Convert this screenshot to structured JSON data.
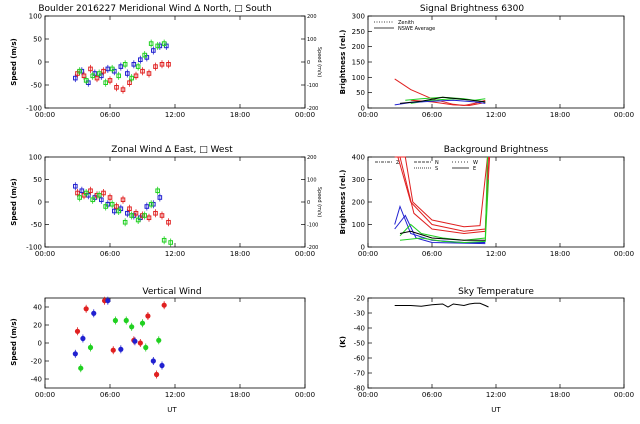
{
  "panels": {
    "meridional": {
      "title": "Boulder   2016227     Meridional Wind   Δ North, □ South",
      "ylabel": "Speed (m/s)",
      "right_label": "Speed (m/s)"
    },
    "signal": {
      "title": "Signal Brightness          6300",
      "ylabel": "Brightness (rel.)",
      "legend": [
        "Zenith",
        "NSWE Average"
      ]
    },
    "zonal": {
      "title": "Zonal Wind        Δ East, □ West",
      "ylabel": "Speed (m/s)",
      "right_label": "Speed (m/s)"
    },
    "background": {
      "title": "Background Brightness",
      "ylabel": "Brightness (rel.)",
      "legend": [
        "Z",
        "N",
        "S",
        "W",
        "E"
      ]
    },
    "vertical": {
      "title": "Vertical Wind",
      "ylabel": "Speed (m/s)",
      "xlabel": "UT"
    },
    "sky": {
      "title": "Sky Temperature",
      "ylabel": "(K)",
      "xlabel": "UT"
    }
  },
  "chart_data": [
    {
      "id": "meridional",
      "type": "scatter",
      "title": "Boulder   2016227     Meridional Wind   Δ North, □ South",
      "ylabel": "Speed (m/s)",
      "xlim": [
        0,
        24
      ],
      "ylim": [
        -100,
        100
      ],
      "xticks": [
        "00:00",
        "06:00",
        "12:00",
        "18:00",
        "00:00"
      ],
      "yticks": [
        -100,
        -50,
        0,
        50,
        100
      ],
      "right_ylim": [
        -200,
        200
      ],
      "right_yticks": [
        -200,
        -100,
        0,
        100,
        200
      ],
      "series": [
        {
          "color": "#2020d0",
          "points": [
            [
              2.8,
              -35
            ],
            [
              3.4,
              -20
            ],
            [
              4.0,
              -45
            ],
            [
              4.6,
              -25
            ],
            [
              5.2,
              -30
            ],
            [
              5.8,
              -15
            ],
            [
              6.4,
              -20
            ],
            [
              7.0,
              -10
            ],
            [
              7.6,
              -25
            ],
            [
              8.2,
              -5
            ],
            [
              8.8,
              5
            ],
            [
              9.4,
              10
            ],
            [
              10.0,
              25
            ],
            [
              10.6,
              35
            ],
            [
              11.2,
              35
            ]
          ]
        },
        {
          "color": "#e02020",
          "points": [
            [
              3.0,
              -25
            ],
            [
              3.6,
              -30
            ],
            [
              4.2,
              -15
            ],
            [
              4.8,
              -35
            ],
            [
              5.4,
              -20
            ],
            [
              6.0,
              -40
            ],
            [
              6.6,
              -55
            ],
            [
              7.2,
              -60
            ],
            [
              7.8,
              -45
            ],
            [
              8.4,
              -30
            ],
            [
              9.0,
              -20
            ],
            [
              9.6,
              -25
            ],
            [
              10.2,
              -10
            ],
            [
              10.8,
              -5
            ],
            [
              11.4,
              -5
            ]
          ]
        },
        {
          "color": "#20d020",
          "points": [
            [
              3.2,
              -20
            ],
            [
              3.8,
              -40
            ],
            [
              4.4,
              -30
            ],
            [
              5.0,
              -25
            ],
            [
              5.6,
              -45
            ],
            [
              6.2,
              -15
            ],
            [
              6.8,
              -30
            ],
            [
              7.4,
              -5
            ],
            [
              8.0,
              -35
            ],
            [
              8.6,
              -10
            ],
            [
              9.2,
              15
            ],
            [
              9.8,
              40
            ],
            [
              10.4,
              35
            ],
            [
              11.0,
              40
            ]
          ]
        }
      ]
    },
    {
      "id": "signal",
      "type": "line",
      "title": "Signal Brightness          6300",
      "ylabel": "Brightness (rel.)",
      "xlim": [
        0,
        24
      ],
      "ylim": [
        0,
        300
      ],
      "xticks": [
        "00:00",
        "06:00",
        "12:00",
        "18:00",
        "00:00"
      ],
      "yticks": [
        0,
        50,
        100,
        150,
        200,
        250,
        300
      ],
      "legend": [
        "Zenith",
        "NSWE Average"
      ],
      "series": [
        {
          "color": "#e02020",
          "dash": "",
          "points": [
            [
              2.5,
              95
            ],
            [
              4,
              60
            ],
            [
              6,
              30
            ],
            [
              8,
              12
            ],
            [
              9,
              8
            ],
            [
              10,
              15
            ],
            [
              11,
              25
            ]
          ]
        },
        {
          "color": "#e02020",
          "dash": "",
          "points": [
            [
              4,
              25
            ],
            [
              6,
              20
            ],
            [
              8,
              10
            ],
            [
              9.5,
              8
            ],
            [
              11,
              18
            ]
          ]
        },
        {
          "color": "#20d020",
          "dash": "",
          "points": [
            [
              3.5,
              25
            ],
            [
              5,
              30
            ],
            [
              7,
              35
            ],
            [
              9,
              30
            ],
            [
              11,
              20
            ]
          ]
        },
        {
          "color": "#20d020",
          "dash": "",
          "points": [
            [
              4,
              15
            ],
            [
              6,
              25
            ],
            [
              8,
              30
            ],
            [
              10,
              25
            ],
            [
              11,
              30
            ]
          ]
        },
        {
          "color": "#2020d0",
          "dash": "",
          "points": [
            [
              2.5,
              10
            ],
            [
              4,
              18
            ],
            [
              6,
              22
            ],
            [
              8,
              25
            ],
            [
              10,
              20
            ],
            [
              11,
              15
            ]
          ]
        },
        {
          "color": "#000000",
          "dash": "",
          "points": [
            [
              3,
              15
            ],
            [
              5,
              22
            ],
            [
              7,
              35
            ],
            [
              9,
              28
            ],
            [
              11,
              20
            ]
          ]
        }
      ]
    },
    {
      "id": "zonal",
      "type": "scatter",
      "title": "Zonal Wind        Δ East, □ West",
      "ylabel": "Speed (m/s)",
      "xlim": [
        0,
        24
      ],
      "ylim": [
        -100,
        100
      ],
      "xticks": [
        "00:00",
        "06:00",
        "12:00",
        "18:00",
        "00:00"
      ],
      "yticks": [
        -100,
        -50,
        0,
        50,
        100
      ],
      "right_ylim": [
        -200,
        200
      ],
      "right_yticks": [
        -200,
        -100,
        0,
        100,
        200
      ],
      "series": [
        {
          "color": "#2020d0",
          "points": [
            [
              2.8,
              35
            ],
            [
              3.4,
              25
            ],
            [
              4.0,
              15
            ],
            [
              4.6,
              10
            ],
            [
              5.2,
              5
            ],
            [
              5.8,
              -5
            ],
            [
              6.4,
              -20
            ],
            [
              7.0,
              -15
            ],
            [
              7.6,
              -25
            ],
            [
              8.2,
              -30
            ],
            [
              8.8,
              -35
            ],
            [
              9.4,
              -10
            ],
            [
              10.0,
              -5
            ],
            [
              10.6,
              10
            ]
          ]
        },
        {
          "color": "#e02020",
          "points": [
            [
              3.0,
              20
            ],
            [
              3.6,
              15
            ],
            [
              4.2,
              25
            ],
            [
              4.8,
              15
            ],
            [
              5.4,
              20
            ],
            [
              6.0,
              10
            ],
            [
              6.6,
              -10
            ],
            [
              7.2,
              5
            ],
            [
              7.8,
              -15
            ],
            [
              8.4,
              -25
            ],
            [
              9.0,
              -30
            ],
            [
              9.6,
              -35
            ],
            [
              10.2,
              -25
            ],
            [
              10.8,
              -30
            ],
            [
              11.4,
              -45
            ]
          ]
        },
        {
          "color": "#20d020",
          "points": [
            [
              3.2,
              10
            ],
            [
              3.8,
              20
            ],
            [
              4.4,
              5
            ],
            [
              5.0,
              15
            ],
            [
              5.6,
              -10
            ],
            [
              6.2,
              -5
            ],
            [
              6.8,
              -20
            ],
            [
              7.4,
              -45
            ],
            [
              8.0,
              -30
            ],
            [
              8.6,
              -40
            ],
            [
              9.2,
              -30
            ],
            [
              9.8,
              -5
            ],
            [
              10.4,
              25
            ],
            [
              11.0,
              -85
            ],
            [
              11.6,
              -90
            ]
          ]
        }
      ]
    },
    {
      "id": "background",
      "type": "line",
      "title": "Background Brightness",
      "ylabel": "Brightness (rel.)",
      "xlim": [
        0,
        24
      ],
      "ylim": [
        0,
        400
      ],
      "xticks": [
        "00:00",
        "06:00",
        "12:00",
        "18:00",
        "00:00"
      ],
      "yticks": [
        0,
        100,
        200,
        300,
        400
      ],
      "legend": [
        "Z",
        "N",
        "S",
        "W",
        "E"
      ],
      "series": [
        {
          "color": "#e02020",
          "points": [
            [
              2.5,
              400
            ],
            [
              3.5,
              400
            ],
            [
              4.2,
              200
            ],
            [
              6,
              120
            ],
            [
              9,
              90
            ],
            [
              10.5,
              95
            ],
            [
              11.2,
              400
            ]
          ]
        },
        {
          "color": "#e02020",
          "points": [
            [
              2.8,
              400
            ],
            [
              4,
              200
            ],
            [
              6,
              100
            ],
            [
              9,
              70
            ],
            [
              11,
              80
            ],
            [
              11.3,
              400
            ]
          ]
        },
        {
          "color": "#e02020",
          "points": [
            [
              3,
              400
            ],
            [
              4.3,
              150
            ],
            [
              6,
              80
            ],
            [
              9,
              60
            ],
            [
              11,
              70
            ],
            [
              11.4,
              400
            ]
          ]
        },
        {
          "color": "#2020d0",
          "points": [
            [
              2.5,
              100
            ],
            [
              3,
              180
            ],
            [
              4,
              60
            ],
            [
              6,
              30
            ],
            [
              9,
              20
            ],
            [
              11,
              20
            ]
          ]
        },
        {
          "color": "#2020d0",
          "points": [
            [
              2.5,
              80
            ],
            [
              3.5,
              140
            ],
            [
              4.5,
              40
            ],
            [
              6,
              20
            ],
            [
              11,
              15
            ]
          ]
        },
        {
          "color": "#20d020",
          "points": [
            [
              3,
              50
            ],
            [
              4,
              100
            ],
            [
              5,
              60
            ],
            [
              7,
              40
            ],
            [
              9,
              30
            ],
            [
              11,
              40
            ],
            [
              11.2,
              400
            ]
          ]
        },
        {
          "color": "#20d020",
          "points": [
            [
              3,
              30
            ],
            [
              5,
              40
            ],
            [
              7,
              25
            ],
            [
              9,
              20
            ],
            [
              11,
              25
            ],
            [
              11.3,
              300
            ]
          ]
        },
        {
          "color": "#000000",
          "points": [
            [
              3,
              60
            ],
            [
              4,
              70
            ],
            [
              6,
              40
            ],
            [
              9,
              30
            ],
            [
              11,
              30
            ]
          ]
        }
      ]
    },
    {
      "id": "vertical",
      "type": "scatter",
      "title": "Vertical Wind",
      "ylabel": "Speed (m/s)",
      "xlabel": "UT",
      "xlim": [
        0,
        24
      ],
      "ylim": [
        -50,
        50
      ],
      "xticks": [
        "00:00",
        "06:00",
        "12:00",
        "18:00",
        "00:00"
      ],
      "yticks": [
        -40,
        -20,
        0,
        20,
        40
      ],
      "series": [
        {
          "color": "#e02020",
          "points": [
            [
              3,
              13
            ],
            [
              3.8,
              38
            ],
            [
              5.5,
              47
            ],
            [
              6.3,
              -8
            ],
            [
              8.2,
              3
            ],
            [
              8.8,
              0
            ],
            [
              9.5,
              30
            ],
            [
              10.3,
              -35
            ],
            [
              11,
              42
            ]
          ]
        },
        {
          "color": "#2020d0",
          "points": [
            [
              2.8,
              -12
            ],
            [
              3.5,
              5
            ],
            [
              4.5,
              33
            ],
            [
              5.8,
              47
            ],
            [
              7,
              -7
            ],
            [
              8.3,
              2
            ],
            [
              10,
              -20
            ],
            [
              10.8,
              -25
            ]
          ]
        },
        {
          "color": "#20d020",
          "points": [
            [
              3.3,
              -28
            ],
            [
              4.2,
              -5
            ],
            [
              6.5,
              25
            ],
            [
              7.5,
              25
            ],
            [
              8.0,
              18
            ],
            [
              9.0,
              22
            ],
            [
              9.3,
              -5
            ],
            [
              10.5,
              3
            ]
          ]
        }
      ]
    },
    {
      "id": "sky",
      "type": "line",
      "title": "Sky Temperature",
      "ylabel": "(K)",
      "xlabel": "UT",
      "xlim": [
        0,
        24
      ],
      "ylim": [
        -80,
        -20
      ],
      "xticks": [
        "00:00",
        "06:00",
        "12:00",
        "18:00",
        "00:00"
      ],
      "yticks": [
        -20,
        -30,
        -40,
        -50,
        -60,
        -70,
        -80
      ],
      "series": [
        {
          "color": "#000000",
          "points": [
            [
              2.5,
              -25
            ],
            [
              4,
              -25
            ],
            [
              5,
              -25.5
            ],
            [
              6,
              -24.5
            ],
            [
              7,
              -24
            ],
            [
              7.5,
              -26
            ],
            [
              8,
              -24
            ],
            [
              9,
              -25
            ],
            [
              9.5,
              -24
            ],
            [
              10,
              -23.5
            ],
            [
              10.5,
              -23.5
            ],
            [
              11,
              -25
            ],
            [
              11.3,
              -26
            ]
          ]
        }
      ]
    }
  ]
}
